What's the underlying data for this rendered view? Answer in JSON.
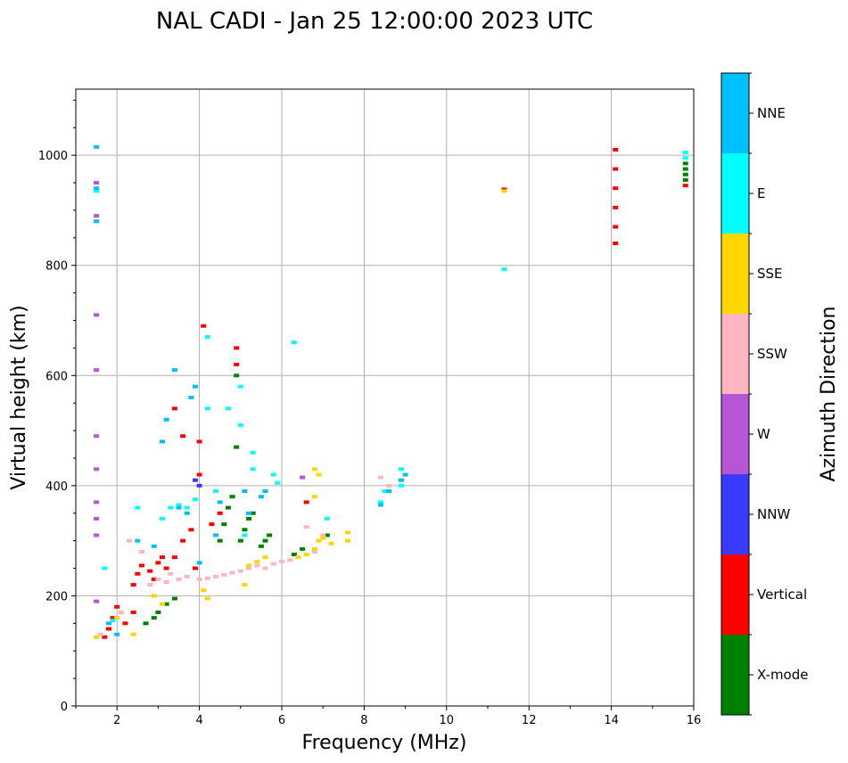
{
  "chart_data": {
    "type": "scatter",
    "title": "NAL CADI - Jan 25 12:00:00 2023 UTC",
    "xlabel": "Frequency (MHz)",
    "ylabel": "Virtual height (km)",
    "xlim": [
      1,
      16
    ],
    "ylim": [
      0,
      1120
    ],
    "xticks": [
      2,
      4,
      6,
      8,
      10,
      12,
      14,
      16
    ],
    "yticks": [
      0,
      200,
      400,
      600,
      800,
      1000
    ],
    "grid": true,
    "colorbar": {
      "title": "Azimuth Direction",
      "categories": [
        "X-mode",
        "Vertical",
        "NNW",
        "W",
        "SSW",
        "SSE",
        "E",
        "NNE"
      ],
      "colors": [
        "#008000",
        "#ff0000",
        "#3a3aff",
        "#b655d6",
        "#ffb6c1",
        "#ffd700",
        "#00ffff",
        "#00bfff"
      ]
    },
    "series": [
      {
        "name": "X-mode",
        "points": [
          [
            2.7,
            150
          ],
          [
            2.9,
            160
          ],
          [
            3.0,
            170
          ],
          [
            3.2,
            185
          ],
          [
            3.4,
            195
          ],
          [
            4.5,
            300
          ],
          [
            4.6,
            330
          ],
          [
            4.7,
            360
          ],
          [
            4.8,
            380
          ],
          [
            4.9,
            470
          ],
          [
            4.9,
            600
          ],
          [
            5.0,
            300
          ],
          [
            5.1,
            320
          ],
          [
            5.2,
            340
          ],
          [
            5.3,
            350
          ],
          [
            5.5,
            290
          ],
          [
            5.6,
            300
          ],
          [
            5.7,
            310
          ],
          [
            6.3,
            275
          ],
          [
            6.5,
            285
          ],
          [
            7.1,
            310
          ],
          [
            15.8,
            955
          ],
          [
            15.8,
            965
          ],
          [
            15.8,
            975
          ],
          [
            15.8,
            985
          ]
        ]
      },
      {
        "name": "Vertical",
        "points": [
          [
            1.7,
            125
          ],
          [
            1.8,
            140
          ],
          [
            1.9,
            160
          ],
          [
            2.0,
            180
          ],
          [
            2.2,
            150
          ],
          [
            2.4,
            170
          ],
          [
            2.4,
            220
          ],
          [
            2.5,
            240
          ],
          [
            2.6,
            255
          ],
          [
            2.8,
            245
          ],
          [
            2.9,
            230
          ],
          [
            3.0,
            260
          ],
          [
            3.1,
            270
          ],
          [
            3.2,
            250
          ],
          [
            3.4,
            270
          ],
          [
            3.6,
            300
          ],
          [
            3.8,
            320
          ],
          [
            3.9,
            250
          ],
          [
            4.0,
            420
          ],
          [
            4.0,
            480
          ],
          [
            4.1,
            690
          ],
          [
            4.3,
            330
          ],
          [
            4.5,
            350
          ],
          [
            4.9,
            620
          ],
          [
            4.9,
            650
          ],
          [
            3.4,
            540
          ],
          [
            3.6,
            490
          ],
          [
            6.6,
            370
          ],
          [
            11.4,
            938
          ],
          [
            14.1,
            1010
          ],
          [
            14.1,
            975
          ],
          [
            14.1,
            940
          ],
          [
            14.1,
            905
          ],
          [
            14.1,
            870
          ],
          [
            14.1,
            840
          ],
          [
            15.8,
            945
          ]
        ]
      },
      {
        "name": "NNW",
        "points": [
          [
            4.0,
            400
          ],
          [
            3.9,
            410
          ]
        ]
      },
      {
        "name": "W",
        "points": [
          [
            1.5,
            950
          ],
          [
            1.5,
            890
          ],
          [
            1.5,
            710
          ],
          [
            1.5,
            610
          ],
          [
            1.5,
            490
          ],
          [
            1.5,
            430
          ],
          [
            1.5,
            370
          ],
          [
            1.5,
            340
          ],
          [
            1.5,
            310
          ],
          [
            1.5,
            190
          ],
          [
            6.5,
            415
          ]
        ]
      },
      {
        "name": "SSW",
        "points": [
          [
            1.6,
            130
          ],
          [
            2.1,
            170
          ],
          [
            2.3,
            300
          ],
          [
            2.6,
            280
          ],
          [
            3.0,
            230
          ],
          [
            3.2,
            225
          ],
          [
            3.5,
            230
          ],
          [
            3.7,
            235
          ],
          [
            4.0,
            230
          ],
          [
            4.2,
            232
          ],
          [
            4.4,
            235
          ],
          [
            4.6,
            238
          ],
          [
            4.8,
            242
          ],
          [
            5.0,
            245
          ],
          [
            5.2,
            250
          ],
          [
            5.4,
            255
          ],
          [
            5.6,
            250
          ],
          [
            5.8,
            258
          ],
          [
            6.0,
            262
          ],
          [
            6.2,
            265
          ],
          [
            6.6,
            325
          ],
          [
            6.8,
            280
          ],
          [
            7.0,
            310
          ],
          [
            8.4,
            415
          ],
          [
            8.6,
            400
          ],
          [
            2.8,
            220
          ],
          [
            3.3,
            240
          ]
        ]
      },
      {
        "name": "SSE",
        "points": [
          [
            1.5,
            125
          ],
          [
            2.0,
            160
          ],
          [
            2.4,
            130
          ],
          [
            2.9,
            200
          ],
          [
            3.1,
            185
          ],
          [
            4.1,
            210
          ],
          [
            4.2,
            195
          ],
          [
            5.1,
            220
          ],
          [
            5.2,
            255
          ],
          [
            5.4,
            262
          ],
          [
            5.6,
            270
          ],
          [
            6.4,
            270
          ],
          [
            6.6,
            275
          ],
          [
            6.8,
            285
          ],
          [
            6.9,
            300
          ],
          [
            7.0,
            305
          ],
          [
            7.2,
            295
          ],
          [
            7.6,
            300
          ],
          [
            7.6,
            315
          ],
          [
            6.8,
            430
          ],
          [
            6.8,
            380
          ],
          [
            6.9,
            420
          ],
          [
            11.4,
            935
          ]
        ]
      },
      {
        "name": "E",
        "points": [
          [
            1.7,
            250
          ],
          [
            1.9,
            155
          ],
          [
            2.5,
            360
          ],
          [
            3.1,
            340
          ],
          [
            3.3,
            360
          ],
          [
            3.5,
            365
          ],
          [
            3.7,
            360
          ],
          [
            3.9,
            375
          ],
          [
            4.2,
            670
          ],
          [
            4.2,
            540
          ],
          [
            4.4,
            390
          ],
          [
            4.7,
            540
          ],
          [
            5.0,
            510
          ],
          [
            5.0,
            580
          ],
          [
            5.1,
            310
          ],
          [
            5.3,
            430
          ],
          [
            5.3,
            460
          ],
          [
            5.8,
            420
          ],
          [
            5.9,
            405
          ],
          [
            6.3,
            660
          ],
          [
            7.1,
            340
          ],
          [
            8.4,
            370
          ],
          [
            8.5,
            390
          ],
          [
            8.9,
            430
          ],
          [
            8.9,
            400
          ],
          [
            11.4,
            793
          ],
          [
            15.8,
            1005
          ],
          [
            15.8,
            995
          ],
          [
            1.5,
            935
          ]
        ]
      },
      {
        "name": "NNE",
        "points": [
          [
            1.5,
            1015
          ],
          [
            1.5,
            940
          ],
          [
            1.5,
            880
          ],
          [
            1.8,
            150
          ],
          [
            2.0,
            130
          ],
          [
            2.5,
            300
          ],
          [
            2.9,
            290
          ],
          [
            3.1,
            480
          ],
          [
            3.2,
            520
          ],
          [
            3.4,
            610
          ],
          [
            3.5,
            360
          ],
          [
            3.7,
            350
          ],
          [
            3.8,
            560
          ],
          [
            3.9,
            580
          ],
          [
            4.0,
            260
          ],
          [
            4.4,
            310
          ],
          [
            4.5,
            370
          ],
          [
            5.1,
            390
          ],
          [
            5.2,
            350
          ],
          [
            5.5,
            380
          ],
          [
            5.6,
            390
          ],
          [
            8.4,
            365
          ],
          [
            8.6,
            390
          ],
          [
            8.9,
            410
          ],
          [
            9.0,
            420
          ]
        ]
      }
    ]
  }
}
